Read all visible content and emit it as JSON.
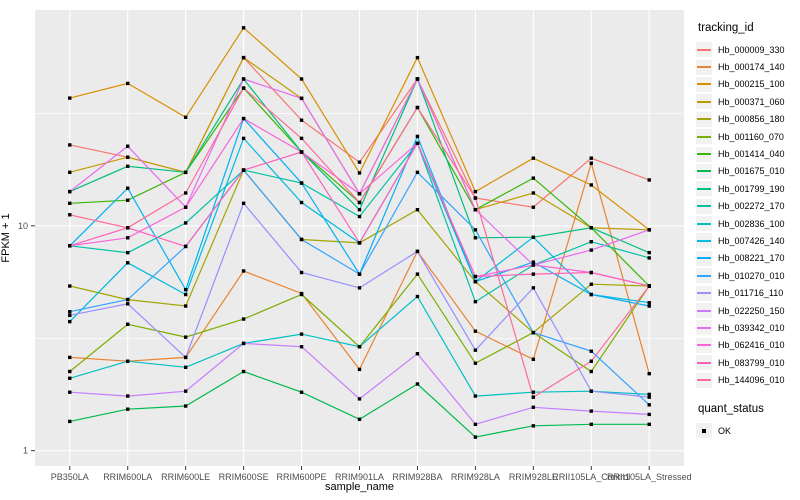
{
  "figure": {
    "x_axis_title": "sample_name",
    "y_axis_title": "FPKM + 1"
  },
  "legend": {
    "tracking_title": "tracking_id",
    "quant_title": "quant_status",
    "quant_items": [
      {
        "label": "OK",
        "marker": "black-square"
      }
    ]
  },
  "colors": {
    "panel_background": "#EBEBEB",
    "grid": "#FFFFFF",
    "axis_text": "#4D4D4D",
    "axis_title": "#000000",
    "tick_mark": "#333333",
    "point": "#000000",
    "legend_key_background": "#F2F2F2"
  },
  "chart_data": {
    "type": "line",
    "title": "",
    "xlabel": "sample_name",
    "ylabel": "FPKM + 1",
    "y_scale": "log10",
    "ylim": [
      0.855,
      91.2
    ],
    "y_ticks": [
      1,
      10
    ],
    "y_minor_gridlines": [
      3.1623,
      31.623
    ],
    "grid": "on",
    "legend_position": "right",
    "point_marker": "black-square",
    "categories": [
      "PB350LA",
      "RRIM600LA",
      "RRIM600LE",
      "RRIM600SE",
      "RRIM600PE",
      "RRIM901LA",
      "RRIM928BA",
      "RRIM928LA",
      "RRIM928LE",
      "RRII105LA_Control",
      "RRII105LA_Stressed"
    ],
    "series": [
      {
        "name": "Hb_000009_330",
        "color": "#F8766D",
        "values": [
          22.9,
          20.2,
          17.3,
          56,
          29.5,
          19.2,
          45,
          13.3,
          12.1,
          20,
          16
        ]
      },
      {
        "name": "Hb_000174_140",
        "color": "#EA8331",
        "values": [
          2.6,
          2.5,
          2.6,
          6.3,
          5.0,
          2.3,
          7.7,
          3.4,
          2.55,
          19,
          2.2
        ]
      },
      {
        "name": "Hb_000215_100",
        "color": "#D89000",
        "values": [
          37,
          43,
          30.4,
          76,
          45,
          17.2,
          56,
          14.2,
          20,
          15.2,
          9.6
        ]
      },
      {
        "name": "Hb_000371_060",
        "color": "#C09B00",
        "values": [
          17.3,
          20.2,
          17.3,
          56,
          36.9,
          13.9,
          45,
          11.8,
          14,
          9.8,
          9.6
        ]
      },
      {
        "name": "Hb_000856_180",
        "color": "#A3A500",
        "values": [
          5.4,
          4.7,
          4.4,
          17.7,
          8.7,
          8.4,
          11.8,
          5.65,
          3.35,
          5.5,
          5.4
        ]
      },
      {
        "name": "Hb_001160_070",
        "color": "#7CAE00",
        "values": [
          2.25,
          3.65,
          3.2,
          3.85,
          4.95,
          2.9,
          6.1,
          2.45,
          3.35,
          2.25,
          5.4
        ]
      },
      {
        "name": "Hb_001414_040",
        "color": "#39B600",
        "values": [
          12.6,
          13.0,
          17.3,
          41,
          21.3,
          12.7,
          33.6,
          11.8,
          16.3,
          9.8,
          5.4
        ]
      },
      {
        "name": "Hb_001675_010",
        "color": "#00BB4E",
        "values": [
          1.35,
          1.53,
          1.58,
          2.25,
          1.82,
          1.38,
          1.98,
          1.15,
          1.29,
          1.31,
          1.31
        ]
      },
      {
        "name": "Hb_001799_190",
        "color": "#00BF7D",
        "values": [
          14.2,
          18.4,
          17.3,
          45,
          21.3,
          11.8,
          45,
          8.85,
          8.9,
          9.8,
          7.6
        ]
      },
      {
        "name": "Hb_002272_170",
        "color": "#00C1A3",
        "values": [
          8.15,
          7.6,
          10.3,
          17.7,
          15.5,
          11.0,
          23.3,
          4.6,
          6.7,
          8.5,
          7.2
        ]
      },
      {
        "name": "Hb_002836_100",
        "color": "#00BFC4",
        "values": [
          2.1,
          2.5,
          2.35,
          3.0,
          3.3,
          2.9,
          4.85,
          1.75,
          1.82,
          1.84,
          1.78
        ]
      },
      {
        "name": "Hb_007426_140",
        "color": "#00BAE0",
        "values": [
          3.75,
          6.85,
          4.95,
          24.5,
          12.7,
          8.4,
          23.3,
          5.65,
          8.9,
          4.95,
          4.55
        ]
      },
      {
        "name": "Hb_008221_170",
        "color": "#00B0F6",
        "values": [
          8.15,
          14.7,
          5.2,
          30,
          15.5,
          6.1,
          25,
          5.65,
          6.9,
          4.95,
          4.4
        ]
      },
      {
        "name": "Hb_010270_010",
        "color": "#35A2FF",
        "values": [
          4.15,
          4.7,
          8.1,
          17.7,
          8.7,
          6.1,
          17.3,
          9.6,
          3.35,
          2.77,
          1.6
        ]
      },
      {
        "name": "Hb_011716_110",
        "color": "#9590FF",
        "values": [
          4.0,
          4.5,
          2.6,
          12.6,
          6.2,
          5.3,
          7.7,
          2.8,
          5.3,
          1.84,
          1.73
        ]
      },
      {
        "name": "Hb_022250_150",
        "color": "#C77CFF",
        "values": [
          1.82,
          1.75,
          1.84,
          3.0,
          2.9,
          1.7,
          2.7,
          1.31,
          1.56,
          1.5,
          1.45
        ]
      },
      {
        "name": "Hb_039342_010",
        "color": "#E76BF3",
        "values": [
          14.2,
          22.6,
          12.1,
          45,
          36.9,
          13.9,
          45,
          11.8,
          6.7,
          7.8,
          9.6
        ]
      },
      {
        "name": "Hb_062416_010",
        "color": "#FA62DB",
        "values": [
          8.15,
          8.85,
          12.1,
          30,
          21.3,
          13.9,
          23.3,
          5.95,
          6.7,
          6.2,
          5.4
        ]
      },
      {
        "name": "Hb_083799_010",
        "color": "#FF62BC",
        "values": [
          8.15,
          9.8,
          8.1,
          17.7,
          21.3,
          8.4,
          23.3,
          5.95,
          6.1,
          6.2,
          5.4
        ]
      },
      {
        "name": "Hb_144096_010",
        "color": "#FF6A98",
        "values": [
          11.2,
          9.8,
          14,
          41,
          24.5,
          12.7,
          33.6,
          13.3,
          1.73,
          2.5,
          5.4
        ]
      }
    ]
  }
}
